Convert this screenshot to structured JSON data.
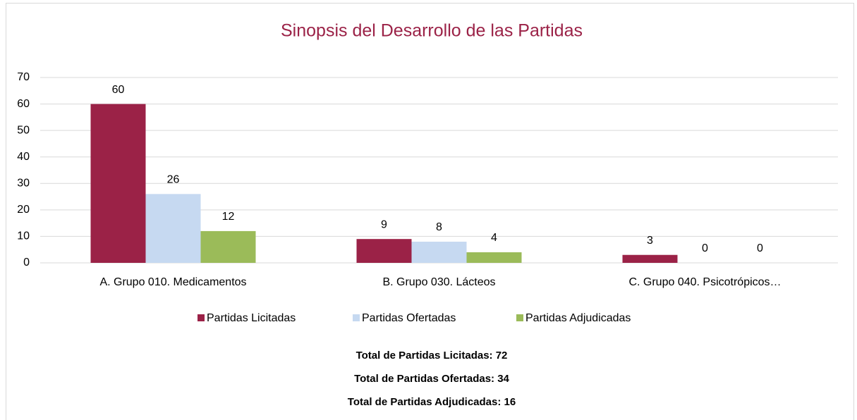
{
  "chart_data": {
    "type": "bar",
    "title": "Sinopsis del Desarrollo de las Partidas",
    "categories": [
      "A. Grupo 010. Medicamentos",
      "B. Grupo 030. Lácteos",
      "C. Grupo 040. Psicotrópicos…"
    ],
    "series": [
      {
        "name": "Partidas Licitadas",
        "color": "#9b2247",
        "values": [
          60,
          9,
          3
        ]
      },
      {
        "name": "Partidas Ofertadas",
        "color": "#c6d9f1",
        "values": [
          26,
          8,
          0
        ]
      },
      {
        "name": "Partidas Adjudicadas",
        "color": "#9bbb59",
        "values": [
          12,
          4,
          0
        ]
      }
    ],
    "ylim": [
      0,
      70
    ],
    "yticks": [
      0,
      10,
      20,
      30,
      40,
      50,
      60,
      70
    ],
    "grid": true,
    "legend": "bottom",
    "totals": [
      "Total de Partidas Licitadas: 72",
      "Total de Partidas Ofertadas: 34",
      "Total de Partidas Adjudicadas: 16"
    ]
  }
}
